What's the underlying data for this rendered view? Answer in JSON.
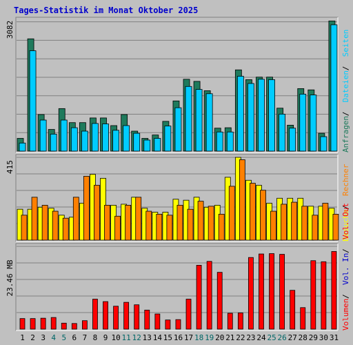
{
  "title": "Tages-Statistik im Monat Oktober 2025",
  "colors": {
    "background": "#c0c0c0",
    "plot_bg": "#c0c0c0",
    "title": "#0000cc",
    "grid": "#808080",
    "frame_dark": "#808080",
    "frame_light": "#ffffff",
    "weekend_label": "#006666",
    "weekday_label": "#000000",
    "anfragen": "#1f7a5c",
    "dateien": "#00ccff",
    "seiten": "#00ccff",
    "besuche": "#ffff00",
    "rechner": "#ff8000",
    "vol_in": "#0000cc",
    "vol_out": "#ff0000",
    "volumen": "#ff0000"
  },
  "chart_data": [
    {
      "type": "bar",
      "panel": "top",
      "ymax_label": "3082",
      "ylim": [
        0,
        3082
      ],
      "categories": [
        "1",
        "2",
        "3",
        "4",
        "5",
        "6",
        "7",
        "8",
        "9",
        "10",
        "11",
        "12",
        "13",
        "14",
        "15",
        "16",
        "17",
        "18",
        "19",
        "20",
        "21",
        "22",
        "23",
        "24",
        "25",
        "26",
        "27",
        "28",
        "29",
        "30",
        "31"
      ],
      "weekend_days": [
        4,
        5,
        11,
        12,
        18,
        19,
        25,
        26
      ],
      "series": [
        {
          "name": "Anfragen",
          "values": [
            300,
            2640,
            860,
            510,
            1000,
            670,
            670,
            780,
            780,
            600,
            860,
            470,
            300,
            380,
            700,
            1180,
            1690,
            1640,
            1420,
            540,
            550,
            1910,
            1680,
            1740,
            1740,
            1010,
            610,
            1470,
            1440,
            420,
            3060
          ]
        },
        {
          "name": "Dateien",
          "values": [
            190,
            2360,
            730,
            400,
            730,
            550,
            470,
            650,
            640,
            490,
            600,
            420,
            260,
            300,
            590,
            1020,
            1520,
            1450,
            1350,
            450,
            450,
            1760,
            1590,
            1690,
            1680,
            870,
            540,
            1340,
            1320,
            340,
            2970
          ]
        }
      ],
      "right_labels": [
        {
          "text": "Anfragen",
          "color_key": "anfragen"
        },
        {
          "text": "Dateien",
          "color_key": "dateien"
        },
        {
          "text": "Seiten",
          "color_key": "seiten"
        }
      ]
    },
    {
      "type": "bar",
      "panel": "middle",
      "ymax_label": "415",
      "ylim": [
        0,
        415
      ],
      "categories": [
        "1",
        "2",
        "3",
        "4",
        "5",
        "6",
        "7",
        "8",
        "9",
        "10",
        "11",
        "12",
        "13",
        "14",
        "15",
        "16",
        "17",
        "18",
        "19",
        "20",
        "21",
        "22",
        "23",
        "24",
        "25",
        "26",
        "27",
        "28",
        "29",
        "30",
        "31"
      ],
      "series": [
        {
          "name": "Besuche",
          "values": [
            155,
            155,
            165,
            160,
            125,
            115,
            185,
            330,
            310,
            175,
            180,
            215,
            160,
            140,
            140,
            205,
            200,
            215,
            165,
            175,
            315,
            415,
            300,
            275,
            185,
            210,
            210,
            210,
            170,
            170,
            160
          ]
        },
        {
          "name": "Rechner",
          "values": [
            125,
            215,
            175,
            145,
            110,
            215,
            320,
            275,
            175,
            120,
            175,
            215,
            145,
            130,
            125,
            175,
            155,
            195,
            170,
            130,
            270,
            403,
            285,
            250,
            145,
            180,
            190,
            170,
            125,
            185,
            130
          ]
        }
      ],
      "right_labels": [
        {
          "text": "Besuche",
          "color_key": "besuche"
        },
        {
          "text": "Rechner",
          "color_key": "rechner"
        }
      ]
    },
    {
      "type": "bar",
      "panel": "bottom",
      "ymax_label": "23.46 MB",
      "ylim": [
        0,
        23.46
      ],
      "unit": "MB",
      "categories": [
        "1",
        "2",
        "3",
        "4",
        "5",
        "6",
        "7",
        "8",
        "9",
        "10",
        "11",
        "12",
        "13",
        "14",
        "15",
        "16",
        "17",
        "18",
        "19",
        "20",
        "21",
        "22",
        "23",
        "24",
        "25",
        "26",
        "27",
        "28",
        "29",
        "30",
        "31"
      ],
      "series": [
        {
          "name": "Volumen",
          "values": [
            3.0,
            3.0,
            3.1,
            3.3,
            1.7,
            1.6,
            2.4,
            8.5,
            7.8,
            6.5,
            7.6,
            6.9,
            5.4,
            4.3,
            2.6,
            2.7,
            8.5,
            18.1,
            19.2,
            16.1,
            4.5,
            4.6,
            20.3,
            21.3,
            21.4,
            21.2,
            11.0,
            6.1,
            19.4,
            19.1,
            22.0
          ]
        }
      ],
      "right_labels": [
        {
          "text": "Volumen",
          "color_key": "volumen"
        },
        {
          "text": "Vol. In",
          "color_key": "vol_in"
        },
        {
          "text": "Vol. Out",
          "color_key": "vol_out"
        }
      ]
    }
  ]
}
